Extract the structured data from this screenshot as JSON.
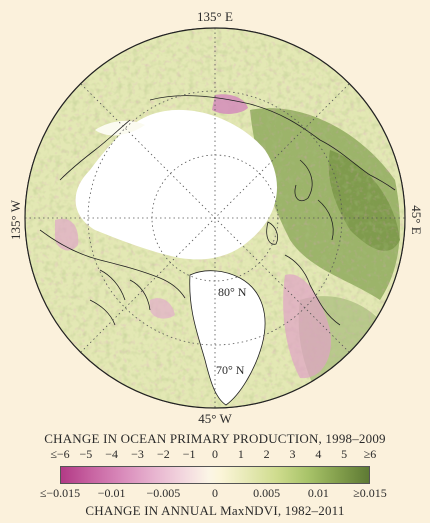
{
  "map": {
    "labels": {
      "top": "135° E",
      "bottom": "45° W",
      "left": "135° W",
      "right": "45° E",
      "lat80": "80° N",
      "lat70": "70° N"
    },
    "colors": {
      "background": "#fbf1dc",
      "land_no_data": "#ffffff",
      "coastline": "#222222",
      "positive_change": "#6f8a3a",
      "negative_change": "#c0509a",
      "neutral": "#f6f1cf"
    }
  },
  "legend": {
    "title_top": "CHANGE IN OCEAN PRIMARY PRODUCTION, 1998–2009",
    "ticks_top": [
      "≤−6",
      "−5",
      "−4",
      "−3",
      "−2",
      "−1",
      "0",
      "1",
      "2",
      "3",
      "4",
      "5",
      "≥6"
    ],
    "ticks_bottom": [
      "≤−0.015",
      "−0.01",
      "−0.005",
      "0",
      "0.005",
      "0.01",
      "≥0.015"
    ],
    "title_bottom": "CHANGE IN ANNUAL MaxNDVI, 1982–2011"
  }
}
